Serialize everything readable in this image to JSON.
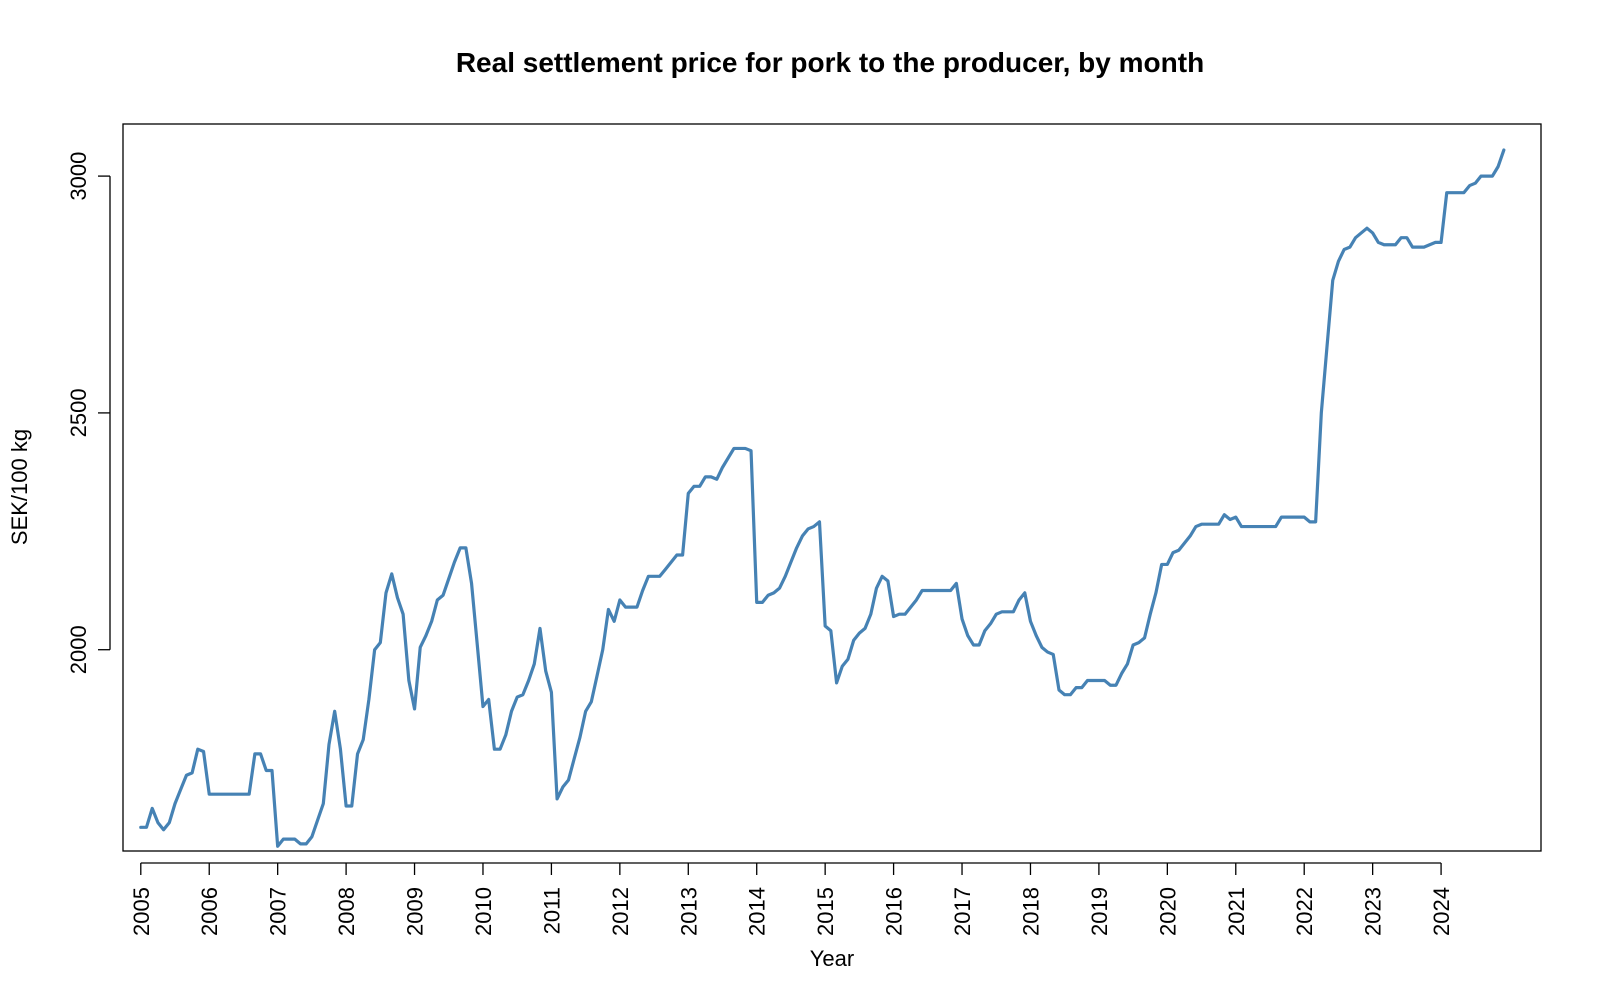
{
  "chart_data": {
    "type": "line",
    "title": "Real settlement price for pork to the producer, by month",
    "xlabel": "Year",
    "ylabel": "SEK/100 kg",
    "x_ticks": [
      "2005",
      "2006",
      "2007",
      "2008",
      "2009",
      "2010",
      "2011",
      "2012",
      "2013",
      "2014",
      "2015",
      "2016",
      "2017",
      "2018",
      "2019",
      "2020",
      "2021",
      "2022",
      "2023",
      "2024"
    ],
    "y_ticks": [
      2000,
      2500,
      3000
    ],
    "xlim": [
      2004.74,
      2025.46
    ],
    "ylim": [
      1575,
      3110
    ],
    "grid": false,
    "line_color": "#4682B4",
    "series": [
      {
        "x": [
          2005.0,
          2005.083,
          2005.167,
          2005.25,
          2005.333,
          2005.417,
          2005.5,
          2005.583,
          2005.667,
          2005.75,
          2005.833,
          2005.917,
          2006.0,
          2006.083,
          2006.167,
          2006.25,
          2006.333,
          2006.417,
          2006.5,
          2006.583,
          2006.667,
          2006.75,
          2006.833,
          2006.917,
          2007.0,
          2007.083,
          2007.167,
          2007.25,
          2007.333,
          2007.417,
          2007.5,
          2007.583,
          2007.667,
          2007.75,
          2007.833,
          2007.917,
          2008.0,
          2008.083,
          2008.167,
          2008.25,
          2008.333,
          2008.417,
          2008.5,
          2008.583,
          2008.667,
          2008.75,
          2008.833,
          2008.917,
          2009.0,
          2009.083,
          2009.167,
          2009.25,
          2009.333,
          2009.417,
          2009.5,
          2009.583,
          2009.667,
          2009.75,
          2009.833,
          2009.917,
          2010.0,
          2010.083,
          2010.167,
          2010.25,
          2010.333,
          2010.417,
          2010.5,
          2010.583,
          2010.667,
          2010.75,
          2010.833,
          2010.917,
          2011.0,
          2011.083,
          2011.167,
          2011.25,
          2011.333,
          2011.417,
          2011.5,
          2011.583,
          2011.667,
          2011.75,
          2011.833,
          2011.917,
          2012.0,
          2012.083,
          2012.167,
          2012.25,
          2012.333,
          2012.417,
          2012.5,
          2012.583,
          2012.667,
          2012.75,
          2012.833,
          2012.917,
          2013.0,
          2013.083,
          2013.167,
          2013.25,
          2013.333,
          2013.417,
          2013.5,
          2013.583,
          2013.667,
          2013.75,
          2013.833,
          2013.917,
          2014.0,
          2014.083,
          2014.167,
          2014.25,
          2014.333,
          2014.417,
          2014.5,
          2014.583,
          2014.667,
          2014.75,
          2014.833,
          2014.917,
          2015.0,
          2015.083,
          2015.167,
          2015.25,
          2015.333,
          2015.417,
          2015.5,
          2015.583,
          2015.667,
          2015.75,
          2015.833,
          2015.917,
          2016.0,
          2016.083,
          2016.167,
          2016.25,
          2016.333,
          2016.417,
          2016.5,
          2016.583,
          2016.667,
          2016.75,
          2016.833,
          2016.917,
          2017.0,
          2017.083,
          2017.167,
          2017.25,
          2017.333,
          2017.417,
          2017.5,
          2017.583,
          2017.667,
          2017.75,
          2017.833,
          2017.917,
          2018.0,
          2018.083,
          2018.167,
          2018.25,
          2018.333,
          2018.417,
          2018.5,
          2018.583,
          2018.667,
          2018.75,
          2018.833,
          2018.917,
          2019.0,
          2019.083,
          2019.167,
          2019.25,
          2019.333,
          2019.417,
          2019.5,
          2019.583,
          2019.667,
          2019.75,
          2019.833,
          2019.917,
          2020.0,
          2020.083,
          2020.167,
          2020.25,
          2020.333,
          2020.417,
          2020.5,
          2020.583,
          2020.667,
          2020.75,
          2020.833,
          2020.917,
          2021.0,
          2021.083,
          2021.167,
          2021.25,
          2021.333,
          2021.417,
          2021.5,
          2021.583,
          2021.667,
          2021.75,
          2021.833,
          2021.917,
          2022.0,
          2022.083,
          2022.167,
          2022.25,
          2022.333,
          2022.417,
          2022.5,
          2022.583,
          2022.667,
          2022.75,
          2022.833,
          2022.917,
          2023.0,
          2023.083,
          2023.167,
          2023.25,
          2023.333,
          2023.417,
          2023.5,
          2023.583,
          2023.667,
          2023.75,
          2023.833,
          2023.917,
          2024.0,
          2024.083,
          2024.167,
          2024.25,
          2024.333,
          2024.417,
          2024.5,
          2024.583,
          2024.667,
          2024.75,
          2024.833,
          2024.917
        ],
        "y": [
          1625,
          1625,
          1665,
          1635,
          1620,
          1635,
          1675,
          1705,
          1735,
          1740,
          1790,
          1785,
          1695,
          1695,
          1695,
          1695,
          1695,
          1695,
          1695,
          1695,
          1780,
          1780,
          1745,
          1745,
          1585,
          1600,
          1600,
          1600,
          1590,
          1590,
          1605,
          1640,
          1675,
          1800,
          1870,
          1790,
          1670,
          1670,
          1780,
          1810,
          1895,
          2000,
          2015,
          2120,
          2160,
          2110,
          2075,
          1935,
          1875,
          2005,
          2030,
          2060,
          2105,
          2115,
          2150,
          2185,
          2215,
          2215,
          2140,
          2010,
          1880,
          1895,
          1790,
          1790,
          1820,
          1870,
          1900,
          1905,
          1935,
          1970,
          2045,
          1955,
          1910,
          1685,
          1710,
          1725,
          1770,
          1815,
          1870,
          1890,
          1945,
          2000,
          2085,
          2060,
          2105,
          2090,
          2090,
          2090,
          2125,
          2155,
          2155,
          2155,
          2170,
          2185,
          2200,
          2200,
          2330,
          2345,
          2345,
          2365,
          2365,
          2360,
          2385,
          2405,
          2425,
          2425,
          2425,
          2420,
          2100,
          2100,
          2115,
          2120,
          2130,
          2155,
          2185,
          2215,
          2240,
          2255,
          2260,
          2270,
          2050,
          2040,
          1930,
          1965,
          1980,
          2020,
          2035,
          2045,
          2075,
          2130,
          2155,
          2145,
          2070,
          2075,
          2075,
          2090,
          2105,
          2125,
          2125,
          2125,
          2125,
          2125,
          2125,
          2140,
          2065,
          2030,
          2010,
          2010,
          2040,
          2055,
          2075,
          2080,
          2080,
          2080,
          2105,
          2120,
          2060,
          2030,
          2005,
          1995,
          1990,
          1915,
          1905,
          1905,
          1920,
          1920,
          1935,
          1935,
          1935,
          1935,
          1925,
          1925,
          1950,
          1970,
          2010,
          2015,
          2025,
          2075,
          2120,
          2180,
          2180,
          2205,
          2210,
          2225,
          2240,
          2260,
          2265,
          2265,
          2265,
          2265,
          2285,
          2275,
          2280,
          2260,
          2260,
          2260,
          2260,
          2260,
          2260,
          2260,
          2280,
          2280,
          2280,
          2280,
          2280,
          2270,
          2270,
          2500,
          2640,
          2780,
          2820,
          2845,
          2850,
          2870,
          2880,
          2890,
          2880,
          2860,
          2855,
          2855,
          2855,
          2870,
          2870,
          2850,
          2850,
          2850,
          2855,
          2860,
          2860,
          2965,
          2965,
          2965,
          2965,
          2980,
          2985,
          3000,
          3000,
          3000,
          3020,
          3055
        ]
      }
    ]
  }
}
